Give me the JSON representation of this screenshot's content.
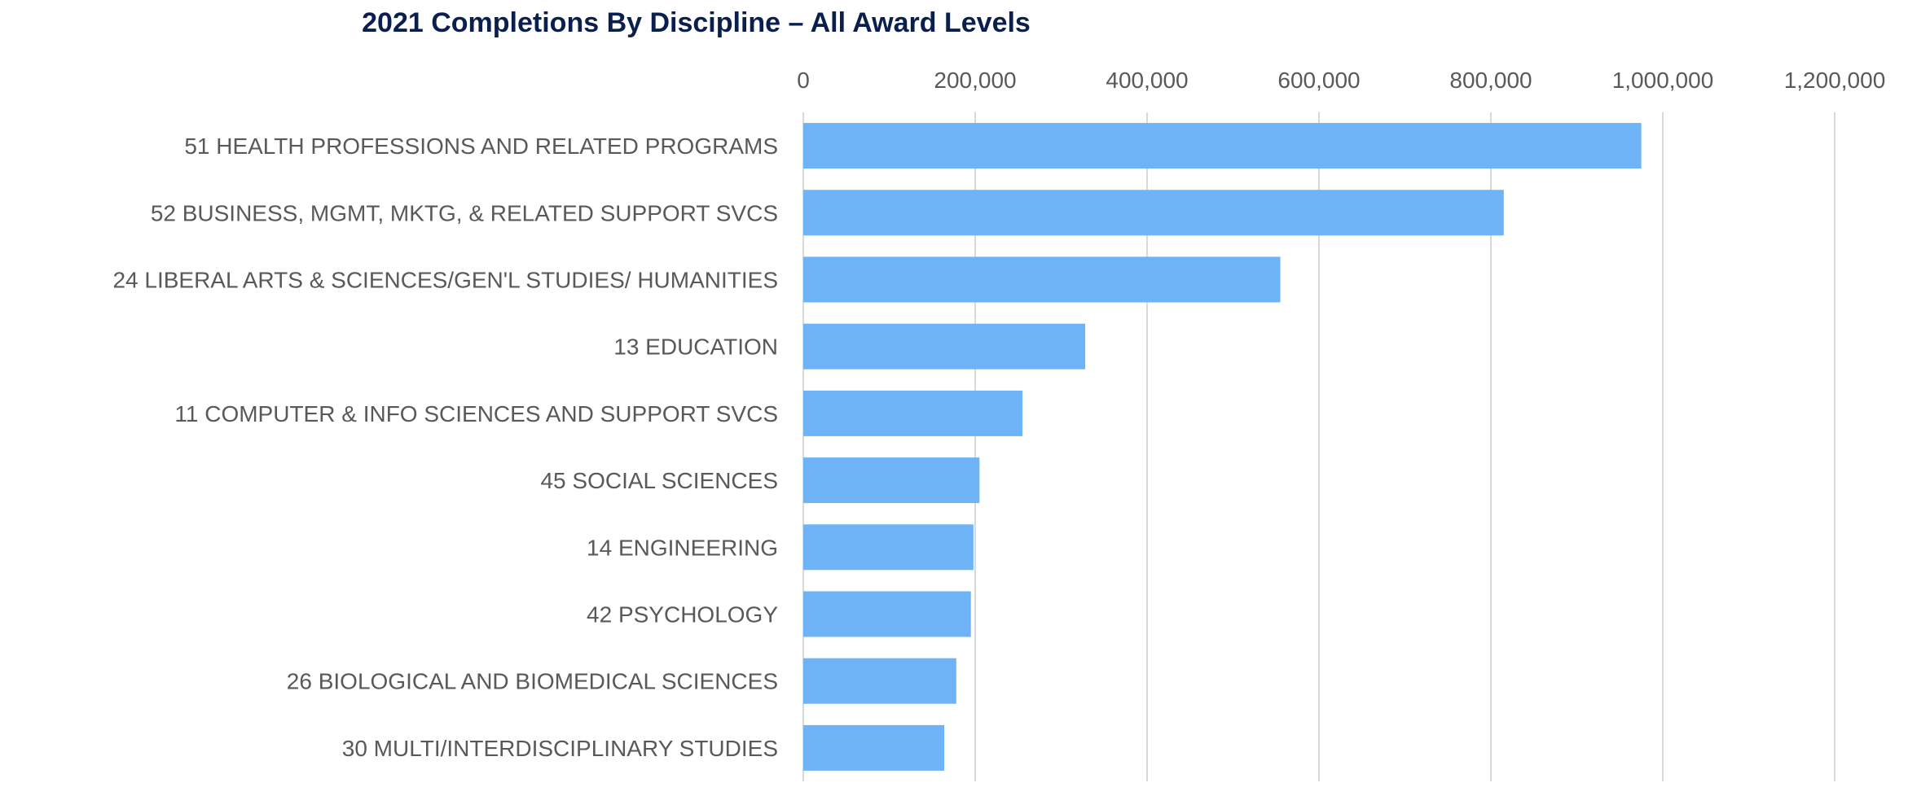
{
  "chart_data": {
    "type": "bar",
    "orientation": "horizontal",
    "title": "2021 Completions By Discipline – All Award Levels",
    "xlabel": "",
    "ylabel": "",
    "xlim": [
      0,
      1200000
    ],
    "x_ticks": [
      0,
      200000,
      400000,
      600000,
      800000,
      1000000,
      1200000
    ],
    "x_tick_labels": [
      "0",
      "200,000",
      "400,000",
      "600,000",
      "800,000",
      "1,000,000",
      "1,200,000"
    ],
    "x_axis_position": "top",
    "grid": true,
    "legend": "none",
    "categories": [
      "51 HEALTH PROFESSIONS AND RELATED PROGRAMS",
      "52 BUSINESS, MGMT, MKTG, & RELATED SUPPORT SVCS",
      "24 LIBERAL ARTS & SCIENCES/GEN'L STUDIES/ HUMANITIES",
      "13 EDUCATION",
      "11 COMPUTER & INFO SCIENCES AND SUPPORT SVCS",
      "45 SOCIAL SCIENCES",
      "14 ENGINEERING",
      "42 PSYCHOLOGY",
      "26 BIOLOGICAL AND BIOMEDICAL SCIENCES",
      "30 MULTI/INTERDISCIPLINARY STUDIES"
    ],
    "values": [
      975000,
      815000,
      555000,
      328000,
      255000,
      205000,
      198000,
      195000,
      178000,
      164000
    ],
    "bar_color": "#6db3f5"
  }
}
